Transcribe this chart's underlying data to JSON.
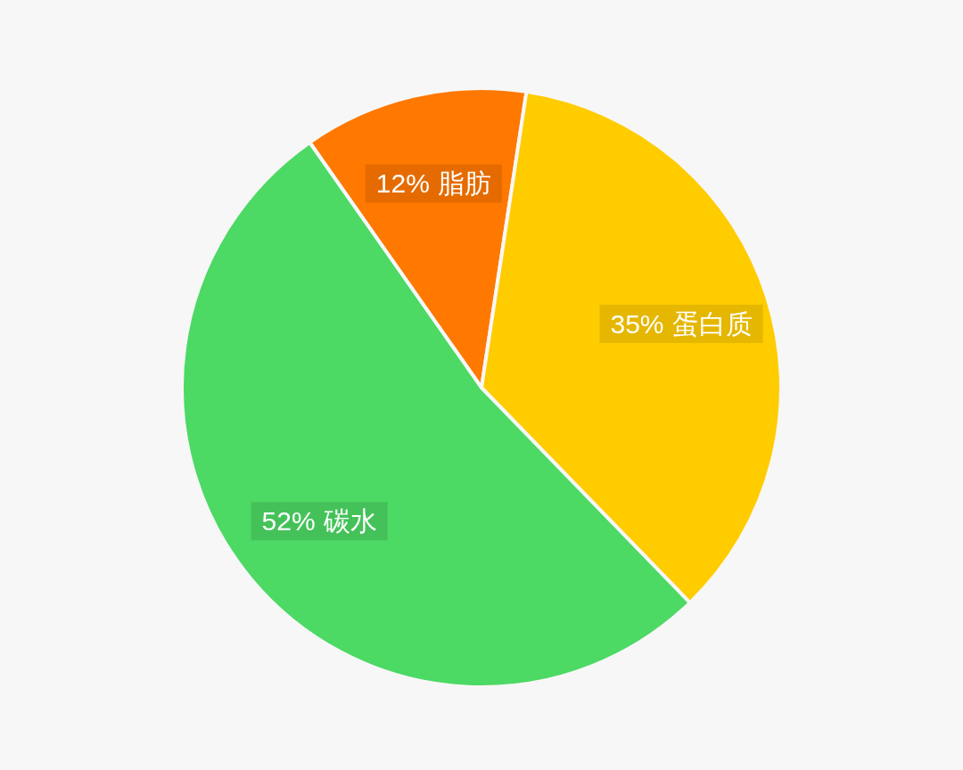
{
  "chart_data": {
    "type": "pie",
    "categories": [
      "脂肪",
      "蛋白质",
      "碳水"
    ],
    "values": [
      12,
      35,
      52
    ],
    "value_labels": [
      "12%",
      "35%",
      "52%"
    ],
    "colors": [
      "#ff7800",
      "#ffcc00",
      "#4cd964"
    ]
  }
}
